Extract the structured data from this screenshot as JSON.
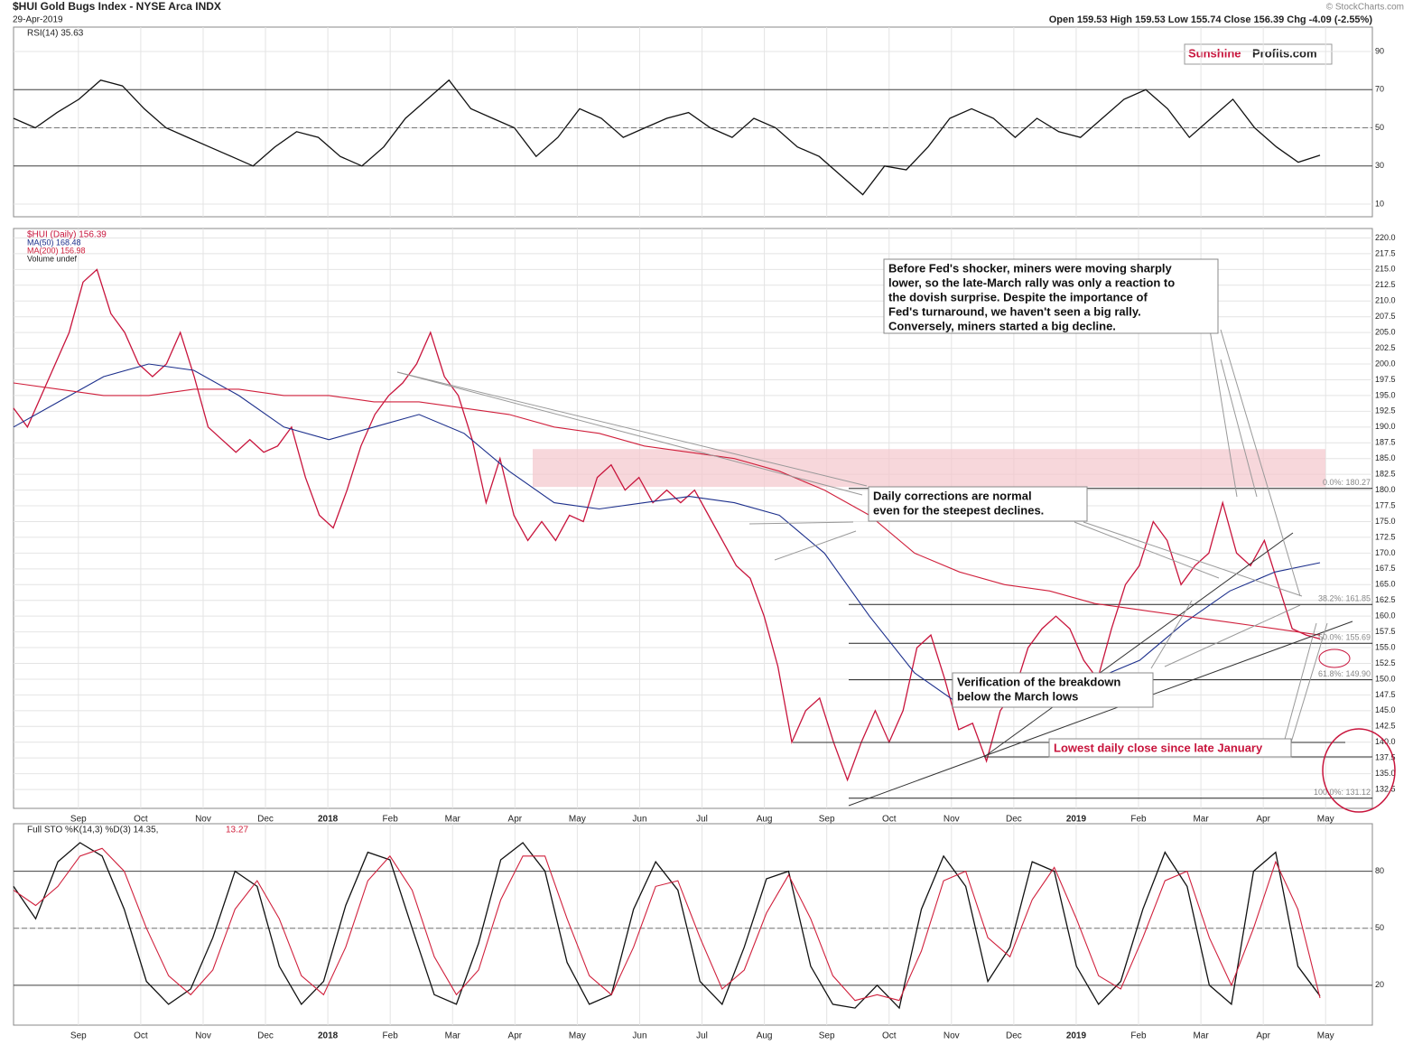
{
  "header": {
    "title": "$HUI Gold Bugs Index - NYSE Arca INDX",
    "date": "29-Apr-2019",
    "quote": "Open 159.53 High 159.53 Low 155.74 Close 156.39 Chg -4.09 (-2.55%)",
    "credit": "© StockCharts.com",
    "logo_a": "Sunshine",
    "logo_b": "Profits.com"
  },
  "chart_data": [
    {
      "type": "line",
      "panel": "rsi",
      "legend": [
        "RSI(14) 35.63"
      ],
      "ylim": [
        3.4,
        102.8
      ],
      "yticks": [
        10,
        30,
        50,
        70,
        90
      ],
      "guides": [
        30,
        50,
        70
      ],
      "series": [
        {
          "name": "RSI(14)",
          "color": "#111111",
          "values": [
            55,
            50,
            58,
            65,
            75,
            72,
            60,
            50,
            45,
            40,
            35,
            30,
            40,
            48,
            45,
            35,
            30,
            40,
            55,
            65,
            75,
            60,
            55,
            50,
            35,
            45,
            60,
            55,
            45,
            50,
            55,
            58,
            50,
            45,
            55,
            50,
            40,
            35,
            25,
            15,
            30,
            28,
            40,
            55,
            60,
            55,
            45,
            55,
            48,
            45,
            55,
            65,
            70,
            60,
            45,
            55,
            65,
            50,
            40,
            32,
            35.63
          ]
        }
      ]
    },
    {
      "type": "line",
      "panel": "price",
      "legend": [
        "$HUI (Daily) 156.39",
        "MA(50) 168.48",
        "MA(200) 156.98",
        "Volume undef"
      ],
      "ylim": [
        129.5,
        221.5
      ],
      "xlim": [
        -1.04,
        19.91
      ],
      "xticks": [
        {
          "value": 0,
          "label": "Sep"
        },
        {
          "value": 1,
          "label": "Oct"
        },
        {
          "value": 2,
          "label": "Nov"
        },
        {
          "value": 3,
          "label": "Dec"
        },
        {
          "value": 4,
          "label": "2018"
        },
        {
          "value": 5,
          "label": "Feb"
        },
        {
          "value": 6,
          "label": "Mar"
        },
        {
          "value": 7,
          "label": "Apr"
        },
        {
          "value": 8,
          "label": "May"
        },
        {
          "value": 9,
          "label": "Jun"
        },
        {
          "value": 10,
          "label": "Jul"
        },
        {
          "value": 11,
          "label": "Aug"
        },
        {
          "value": 12,
          "label": "Sep"
        },
        {
          "value": 13,
          "label": "Oct"
        },
        {
          "value": 14,
          "label": "Nov"
        },
        {
          "value": 15,
          "label": "Dec"
        },
        {
          "value": 16,
          "label": "2019"
        },
        {
          "value": 17,
          "label": "Feb"
        },
        {
          "value": 18,
          "label": "Mar"
        },
        {
          "value": 19,
          "label": "Apr"
        },
        {
          "value": 20,
          "label": "May"
        }
      ],
      "yticks": [
        132.5,
        {
          "value": 135,
          "label": "135.0"
        },
        137.5,
        {
          "value": 140,
          "label": "140.0"
        },
        142.5,
        {
          "value": 145,
          "label": "145.0"
        },
        147.5,
        {
          "value": 150,
          "label": "150.0"
        },
        152.5,
        {
          "value": 155,
          "label": "155.0"
        },
        157.5,
        {
          "value": 160,
          "label": "160.0"
        },
        162.5,
        {
          "value": 165,
          "label": "165.0"
        },
        167.5,
        {
          "value": 170,
          "label": "170.0"
        },
        172.5,
        {
          "value": 175,
          "label": "175.0"
        },
        177.5,
        {
          "value": 180,
          "label": "180.0"
        },
        182.5,
        {
          "value": 185,
          "label": "185.0"
        },
        187.5,
        {
          "value": 190,
          "label": "190.0"
        },
        192.5,
        {
          "value": 195,
          "label": "195.0"
        },
        197.5,
        {
          "value": 200,
          "label": "200.0"
        },
        202.5,
        {
          "value": 205,
          "label": "205.0"
        },
        207.5,
        {
          "value": 210,
          "label": "210.0"
        },
        212.5,
        {
          "value": 215,
          "label": "215.0"
        },
        217.5,
        {
          "value": 220,
          "label": "220.0"
        }
      ],
      "grid": true,
      "series": [
        {
          "name": "$HUI",
          "color": "#c8143c",
          "values": [
            193,
            190,
            195,
            200,
            205,
            213,
            215,
            208,
            205,
            200,
            198,
            200,
            205,
            198,
            190,
            188,
            186,
            188,
            186,
            187,
            190,
            182,
            176,
            174,
            180,
            187,
            192,
            195,
            197,
            200,
            205,
            198,
            195,
            188,
            178,
            185,
            176,
            172,
            175,
            172,
            176,
            175,
            182,
            184,
            180,
            182,
            178,
            180,
            178,
            180,
            176,
            172,
            168,
            166,
            160,
            152,
            140,
            145,
            147,
            140,
            134,
            140,
            145,
            140,
            145,
            155,
            157,
            150,
            142,
            143,
            137,
            145,
            148,
            155,
            158,
            160,
            158,
            153,
            150,
            158,
            165,
            168,
            175,
            172,
            165,
            168,
            170,
            178,
            170,
            168,
            172,
            165,
            158,
            157,
            156.39
          ]
        },
        {
          "name": "MA(50)",
          "color": "#1c2f8c",
          "values": [
            190,
            194,
            198,
            200,
            199,
            195,
            190,
            188,
            190,
            192,
            189,
            183,
            178,
            177,
            178,
            179,
            178,
            176,
            170,
            160,
            151,
            146,
            146,
            147,
            150,
            153,
            159,
            164,
            167,
            168.48
          ]
        },
        {
          "name": "MA(200)",
          "color": "#d0203c",
          "values": [
            197,
            196,
            195,
            195,
            196,
            196,
            195,
            195,
            194,
            194,
            193,
            192,
            190,
            189,
            187,
            186,
            185,
            183,
            180,
            176,
            170,
            167,
            165,
            164,
            162,
            161,
            160,
            159,
            158,
            156.98
          ]
        }
      ],
      "zone": [
        180.5,
        186.5
      ],
      "levels": [
        {
          "value": 180.27,
          "label": "0.0%: 180.27"
        },
        {
          "value": 161.85,
          "label": "38.2%: 161.85"
        },
        {
          "value": 155.69,
          "label": "50.0%: 155.69"
        },
        {
          "value": 149.9,
          "label": "61.8%: 149.90"
        },
        {
          "value": 131.12,
          "label": "100.0%: 131.12"
        }
      ],
      "annotations": [
        "Before Fed's shocker, miners were moving sharply",
        "lower, so the late-March rally was only a reaction to",
        "the dovish surprise. Despite the importance of",
        "Fed's turnaround, we haven't seen a big rally.",
        "Conversely, miners started a big decline.",
        "Daily corrections are normal",
        "even for the steepest declines.",
        "Verification of the breakdown",
        "below the March lows",
        "Lowest daily close since late January"
      ]
    },
    {
      "type": "line",
      "panel": "sto",
      "legend": [
        "Full STO %K(14,3) %D(3) 14.35,",
        "13.27"
      ],
      "ylim": [
        -1,
        105
      ],
      "yticks": [
        20,
        50,
        80
      ],
      "guides": [
        20,
        50,
        80
      ],
      "series": [
        {
          "name": "%K",
          "color": "#111111",
          "values": [
            72,
            55,
            85,
            95,
            88,
            60,
            22,
            10,
            18,
            45,
            80,
            72,
            30,
            10,
            22,
            62,
            90,
            86,
            50,
            15,
            10,
            42,
            86,
            95,
            80,
            32,
            10,
            15,
            60,
            85,
            70,
            22,
            10,
            40,
            76,
            80,
            30,
            10,
            8,
            20,
            8,
            60,
            88,
            72,
            22,
            40,
            85,
            80,
            30,
            10,
            22,
            60,
            90,
            72,
            20,
            10,
            80,
            90,
            30,
            14.35
          ]
        },
        {
          "name": "%D",
          "color": "#d0203c",
          "values": [
            70,
            62,
            72,
            88,
            92,
            80,
            50,
            25,
            15,
            28,
            60,
            75,
            55,
            25,
            15,
            40,
            75,
            88,
            70,
            35,
            15,
            28,
            65,
            88,
            88,
            55,
            25,
            15,
            40,
            72,
            75,
            45,
            18,
            28,
            58,
            78,
            55,
            25,
            12,
            15,
            12,
            38,
            75,
            80,
            45,
            35,
            65,
            82,
            55,
            25,
            18,
            45,
            75,
            80,
            45,
            20,
            50,
            85,
            60,
            13.27
          ]
        }
      ]
    }
  ]
}
